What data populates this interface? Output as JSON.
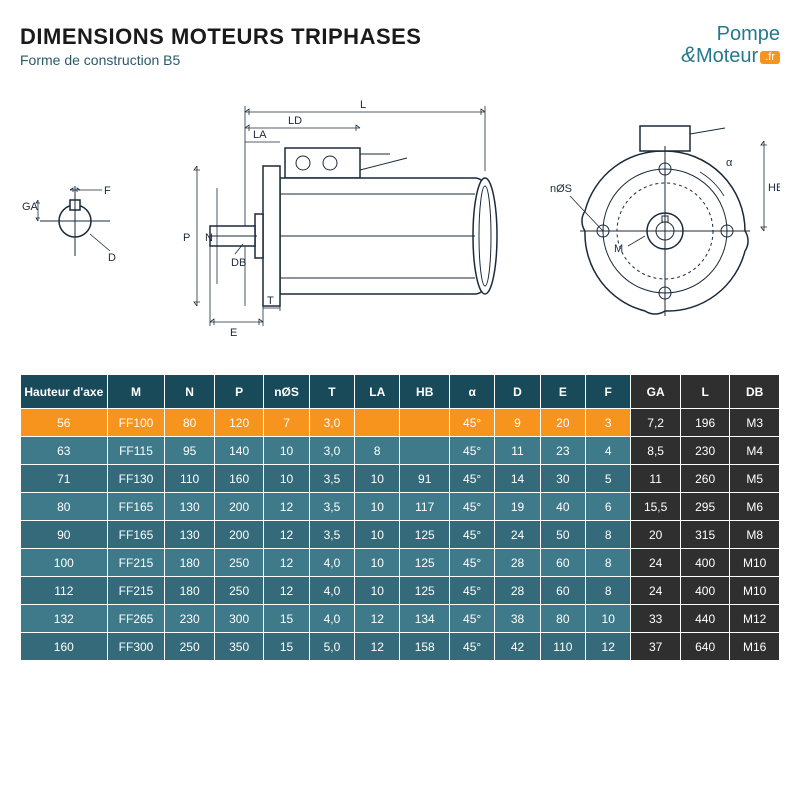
{
  "header": {
    "title": "DIMENSIONS MOTEURS TRIPHASES",
    "subtitle": "Forme de construction B5",
    "logo_top": "Pompe",
    "logo_bottom": "Moteur",
    "logo_badge": ".fr"
  },
  "diagram": {
    "labels": {
      "GA": "GA",
      "F": "F",
      "D": "D",
      "L": "L",
      "LD": "LD",
      "LA": "LA",
      "P": "P",
      "N": "N",
      "DB": "DB",
      "E": "E",
      "T": "T",
      "alpha": "α",
      "nOS": "nØS",
      "M": "M",
      "HB": "HB"
    }
  },
  "table": {
    "columns": [
      "Hauteur d'axe",
      "M",
      "N",
      "P",
      "nØS",
      "T",
      "LA",
      "HB",
      "α",
      "D",
      "E",
      "F",
      "GA",
      "L",
      "DB"
    ],
    "dark_cols": [
      12,
      13,
      14
    ],
    "highlight_row_index": 0,
    "col_widths_pct": [
      10.5,
      7,
      6,
      6,
      5.5,
      5.5,
      5.5,
      6,
      5.5,
      5.5,
      5.5,
      5.5,
      6,
      6,
      6
    ],
    "rows": [
      [
        "56",
        "FF100",
        "80",
        "120",
        "7",
        "3,0",
        "",
        "",
        "45°",
        "9",
        "20",
        "3",
        "7,2",
        "196",
        "M3"
      ],
      [
        "63",
        "FF115",
        "95",
        "140",
        "10",
        "3,0",
        "8",
        "",
        "45°",
        "11",
        "23",
        "4",
        "8,5",
        "230",
        "M4"
      ],
      [
        "71",
        "FF130",
        "110",
        "160",
        "10",
        "3,5",
        "10",
        "91",
        "45°",
        "14",
        "30",
        "5",
        "11",
        "260",
        "M5"
      ],
      [
        "80",
        "FF165",
        "130",
        "200",
        "12",
        "3,5",
        "10",
        "117",
        "45°",
        "19",
        "40",
        "6",
        "15,5",
        "295",
        "M6"
      ],
      [
        "90",
        "FF165",
        "130",
        "200",
        "12",
        "3,5",
        "10",
        "125",
        "45°",
        "24",
        "50",
        "8",
        "20",
        "315",
        "M8"
      ],
      [
        "100",
        "FF215",
        "180",
        "250",
        "12",
        "4,0",
        "10",
        "125",
        "45°",
        "28",
        "60",
        "8",
        "24",
        "400",
        "M10"
      ],
      [
        "112",
        "FF215",
        "180",
        "250",
        "12",
        "4,0",
        "10",
        "125",
        "45°",
        "28",
        "60",
        "8",
        "24",
        "400",
        "M10"
      ],
      [
        "132",
        "FF265",
        "230",
        "300",
        "15",
        "4,0",
        "12",
        "134",
        "45°",
        "38",
        "80",
        "10",
        "33",
        "440",
        "M12"
      ],
      [
        "160",
        "FF300",
        "250",
        "350",
        "15",
        "5,0",
        "12",
        "158",
        "45°",
        "42",
        "110",
        "12",
        "37",
        "640",
        "M16"
      ]
    ]
  },
  "colors": {
    "header_bg": "#194a5a",
    "highlight_bg": "#f7941d",
    "teal_a": "#3f7a8a",
    "teal_b": "#346a79",
    "dark_bg": "#2f2f2f",
    "accent_teal": "#247a8c"
  }
}
